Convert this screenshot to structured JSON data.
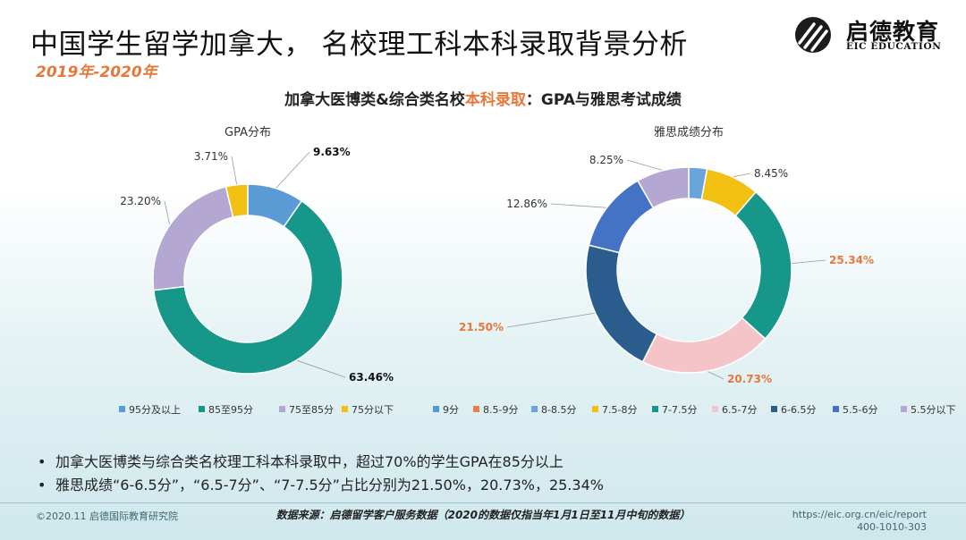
{
  "header": {
    "title": "中国学生留学加拿大， 名校理工科本科录取背景分析",
    "year_range": "2019年-2020年",
    "logo_name": "启德教育",
    "logo_sub": "EIC EDUCATION"
  },
  "chart_heading": {
    "part1": "加拿大医博类&综合类名校",
    "part2": "本科录取",
    "part3": "：GPA与雅思考试成绩"
  },
  "colors": {
    "accent": "#e8773a"
  },
  "chart_data": [
    {
      "type": "pie",
      "donut": true,
      "title": "GPA分布",
      "categories": [
        "95分及以上",
        "85至95分",
        "75至85分",
        "75分以下"
      ],
      "values": [
        9.63,
        63.46,
        23.2,
        3.71
      ],
      "labels": [
        "9.63%",
        "63.46%",
        "23.20%",
        "3.71%"
      ],
      "colors": [
        "#5b9bd5",
        "#16978a",
        "#b4a8d2",
        "#f2c012"
      ],
      "legend_position": "bottom"
    },
    {
      "type": "pie",
      "donut": true,
      "title": "雅思成绩分布",
      "categories": [
        "9分",
        "8.5-9分",
        "8-8.5分",
        "7.5-8分",
        "7-7.5分",
        "6.5-7分",
        "6-6.5分",
        "5.5-6分",
        "5.5分以下"
      ],
      "values": [
        0,
        0,
        2.86,
        8.45,
        25.34,
        20.73,
        21.5,
        12.86,
        8.25
      ],
      "labels": [
        "",
        "",
        "",
        "8.45%",
        "25.34%",
        "20.73%",
        "21.50%",
        "12.86%",
        "8.25%"
      ],
      "colors": [
        "#4f9bd9",
        "#ec7e46",
        "#6aa4dc",
        "#f2c012",
        "#16978a",
        "#f4c4c8",
        "#2b5c8e",
        "#4472c4",
        "#b4a8d2"
      ],
      "legend_position": "bottom"
    }
  ],
  "bullets": [
    "加拿大医博类与综合类名校理工科本科录取中，超过70%的学生GPA在85分以上",
    "雅思成绩“6-6.5分”，“6.5-7分”、“7-7.5分”占比分别为21.50%，20.73%，25.34%"
  ],
  "bullet_marker": "•",
  "footer": {
    "copyright": "©2020.11 启德国际教育研究院",
    "data_source": "数据来源：启德留学客户服务数据（2020的数据仅指当年1月1日至11月中旬的数据）",
    "url": "https://eic.org.cn/eic/report",
    "phone": "400-1010-303"
  }
}
